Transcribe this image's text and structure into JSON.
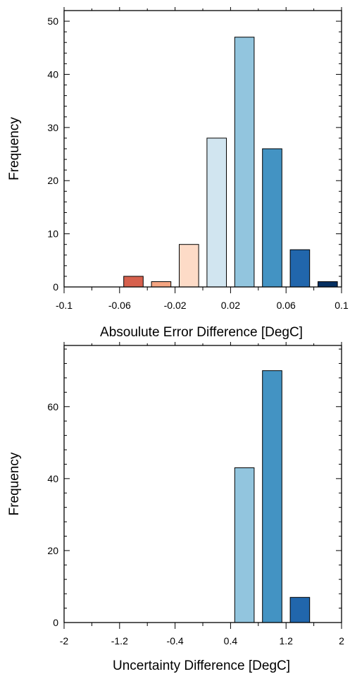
{
  "chart_data": [
    {
      "type": "bar",
      "xlabel": "Absoulute Error Difference [DegC]",
      "ylabel": "Frequency",
      "xlim": [
        -0.1,
        0.1
      ],
      "ylim": [
        0,
        52
      ],
      "x_ticks": [
        -0.1,
        -0.06,
        -0.02,
        0.02,
        0.06,
        0.1
      ],
      "x_tick_labels": [
        "-0.1",
        "-0.06",
        "-0.02",
        "0.02",
        "0.06",
        "0.1"
      ],
      "y_ticks": [
        0,
        10,
        20,
        30,
        40,
        50
      ],
      "y_tick_labels": [
        "0",
        "10",
        "20",
        "30",
        "40",
        "50"
      ],
      "bar_width": 0.014,
      "bars": [
        {
          "x": -0.09,
          "value": 0,
          "color": "#b2182b"
        },
        {
          "x": -0.07,
          "value": 0,
          "color": "#b2182b"
        },
        {
          "x": -0.05,
          "value": 2,
          "color": "#d6604d"
        },
        {
          "x": -0.03,
          "value": 1,
          "color": "#f4a582"
        },
        {
          "x": -0.01,
          "value": 8,
          "color": "#fddbc7"
        },
        {
          "x": 0.01,
          "value": 28,
          "color": "#d1e5f0"
        },
        {
          "x": 0.03,
          "value": 47,
          "color": "#92c5de"
        },
        {
          "x": 0.05,
          "value": 26,
          "color": "#4393c3"
        },
        {
          "x": 0.07,
          "value": 7,
          "color": "#2166ac"
        },
        {
          "x": 0.09,
          "value": 1,
          "color": "#053061"
        }
      ],
      "grid": false,
      "legend": "none"
    },
    {
      "type": "bar",
      "xlabel": "Uncertainty Difference [DegC]",
      "ylabel": "Frequency",
      "xlim": [
        -2,
        2
      ],
      "ylim": [
        0,
        77
      ],
      "x_ticks": [
        -2,
        -1.2,
        -0.4,
        0.4,
        1.2,
        2
      ],
      "x_tick_labels": [
        "-2",
        "-1.2",
        "-0.4",
        "0.4",
        "1.2",
        "2"
      ],
      "y_ticks": [
        0,
        20,
        40,
        60
      ],
      "y_tick_labels": [
        "0",
        "20",
        "40",
        "60"
      ],
      "bar_width": 0.28,
      "bars": [
        {
          "x": -1.8,
          "value": 0,
          "color": "#b2182b"
        },
        {
          "x": -1.4,
          "value": 0,
          "color": "#b2182b"
        },
        {
          "x": -1.0,
          "value": 0,
          "color": "#b2182b"
        },
        {
          "x": -0.6,
          "value": 0,
          "color": "#b2182b"
        },
        {
          "x": -0.2,
          "value": 0,
          "color": "#b2182b"
        },
        {
          "x": 0.2,
          "value": 0,
          "color": "#b2182b"
        },
        {
          "x": 0.6,
          "value": 43,
          "color": "#92c5de"
        },
        {
          "x": 1.0,
          "value": 70,
          "color": "#4393c3"
        },
        {
          "x": 1.4,
          "value": 7,
          "color": "#2166ac"
        },
        {
          "x": 1.8,
          "value": 0,
          "color": "#b2182b"
        }
      ],
      "grid": false,
      "legend": "none"
    }
  ]
}
